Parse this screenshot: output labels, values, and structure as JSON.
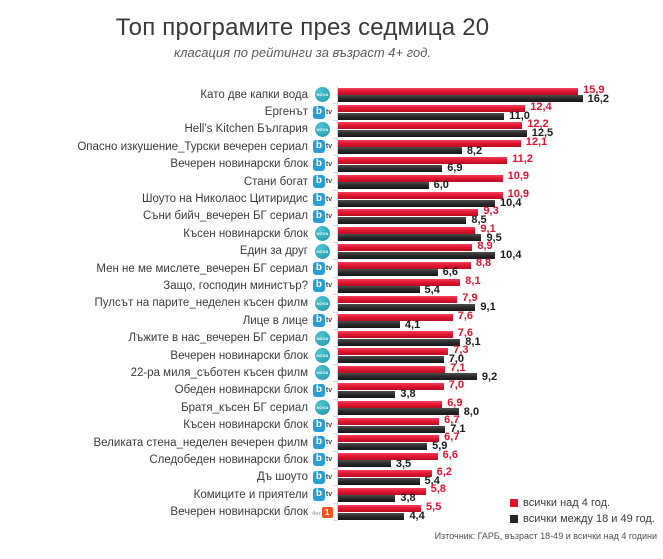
{
  "title": "Топ програмите през седмица 20",
  "subtitle": "класация по рейтинги за възраст 4+ год.",
  "source": "Източник: ГАРБ, възраст 18-49  и всички над 4 години",
  "colors": {
    "series_all4": "#e1132d",
    "series_18_49": "#262626",
    "nova_teal": "#1f97a8",
    "btv_blue": "#2a9cd6",
    "bnt_orange": "#f0541e",
    "axis_gray": "#d8d8d8"
  },
  "channel_icons": {
    "nova": {
      "icon": "nova-icon",
      "text": "NOVA"
    },
    "btv": {
      "icon": "btv-icon",
      "box_text": "b",
      "suffix": "tv"
    },
    "bnt1": {
      "icon": "bnt1-icon",
      "prefix": "бнт",
      "box_text": "1"
    }
  },
  "legend": [
    {
      "label": "всички над 4 год.",
      "color": "#e1132d"
    },
    {
      "label": "всички между 18 и 49 год.",
      "color": "#262626"
    }
  ],
  "chart_data": {
    "type": "bar",
    "orientation": "horizontal",
    "title": "Топ програмите през седмица 20",
    "subtitle": "класация по рейтинги за възраст 4+ год.",
    "xlim": [
      0,
      17
    ],
    "grid": false,
    "legend_position": "bottom-right",
    "series_names": [
      "всички над 4 год.",
      "всички между 18 и 49 год."
    ],
    "decimal_separator": ",",
    "rows": [
      {
        "program": "Като две  капки вода",
        "channel": "nova",
        "all4": 15.9,
        "a1849": 16.2
      },
      {
        "program": "Ергенът",
        "channel": "btv",
        "all4": 12.4,
        "a1849": 11.0
      },
      {
        "program": "Hell’s Kitchen България",
        "channel": "nova",
        "all4": 12.2,
        "a1849": 12.5
      },
      {
        "program": "Опасно изкушение_Турски вечерен сериал",
        "channel": "btv",
        "all4": 12.1,
        "a1849": 8.2
      },
      {
        "program": "Вечерен новинарски блок",
        "channel": "btv",
        "all4": 11.2,
        "a1849": 6.9
      },
      {
        "program": "Стани богат",
        "channel": "btv",
        "all4": 10.9,
        "a1849": 6.0
      },
      {
        "program": "Шоуто на Николаос Цитиридис",
        "channel": "btv",
        "all4": 10.9,
        "a1849": 10.4
      },
      {
        "program": "Съни бийч_вечерен БГ сериал",
        "channel": "btv",
        "all4": 9.3,
        "a1849": 8.5
      },
      {
        "program": "Късен новинарски блок",
        "channel": "nova",
        "all4": 9.1,
        "a1849": 9.5
      },
      {
        "program": "Един за друг",
        "channel": "nova",
        "all4": 8.9,
        "a1849": 10.4
      },
      {
        "program": "Мен не ме мислете_вечерен БГ сериал",
        "channel": "btv",
        "all4": 8.8,
        "a1849": 6.6
      },
      {
        "program": "Защо,  господин министър?",
        "channel": "btv",
        "all4": 8.1,
        "a1849": 5.4
      },
      {
        "program": "Пулсът на парите_неделен късен филм",
        "channel": "nova",
        "all4": 7.9,
        "a1849": 9.1
      },
      {
        "program": "Лице в лице",
        "channel": "btv",
        "all4": 7.6,
        "a1849": 4.1
      },
      {
        "program": "Лъжите в нас_вечерен БГ сериал",
        "channel": "nova",
        "all4": 7.6,
        "a1849": 8.1
      },
      {
        "program": "Вечерен новинарски блок",
        "channel": "nova",
        "all4": 7.3,
        "a1849": 7.0
      },
      {
        "program": "22-ра миля_съботен късен филм",
        "channel": "nova",
        "all4": 7.1,
        "a1849": 9.2
      },
      {
        "program": "Обеден новинарски блок",
        "channel": "btv",
        "all4": 7.0,
        "a1849": 3.8
      },
      {
        "program": "Братя_късен БГ сериал",
        "channel": "nova",
        "all4": 6.9,
        "a1849": 8.0
      },
      {
        "program": "Късен новинарски блок",
        "channel": "btv",
        "all4": 6.7,
        "a1849": 7.1
      },
      {
        "program": "Великата стена_неделен вечерен филм",
        "channel": "btv",
        "all4": 6.7,
        "a1849": 5.9
      },
      {
        "program": "Следобеден новинарски блок",
        "channel": "btv",
        "all4": 6.6,
        "a1849": 3.5
      },
      {
        "program": "Дъ шоуто",
        "channel": "btv",
        "all4": 6.2,
        "a1849": 5.4
      },
      {
        "program": "Комиците и приятели",
        "channel": "btv",
        "all4": 5.8,
        "a1849": 3.8
      },
      {
        "program": "Вечерен новинарски блок",
        "channel": "bnt1",
        "all4": 5.5,
        "a1849": 4.4
      }
    ]
  }
}
